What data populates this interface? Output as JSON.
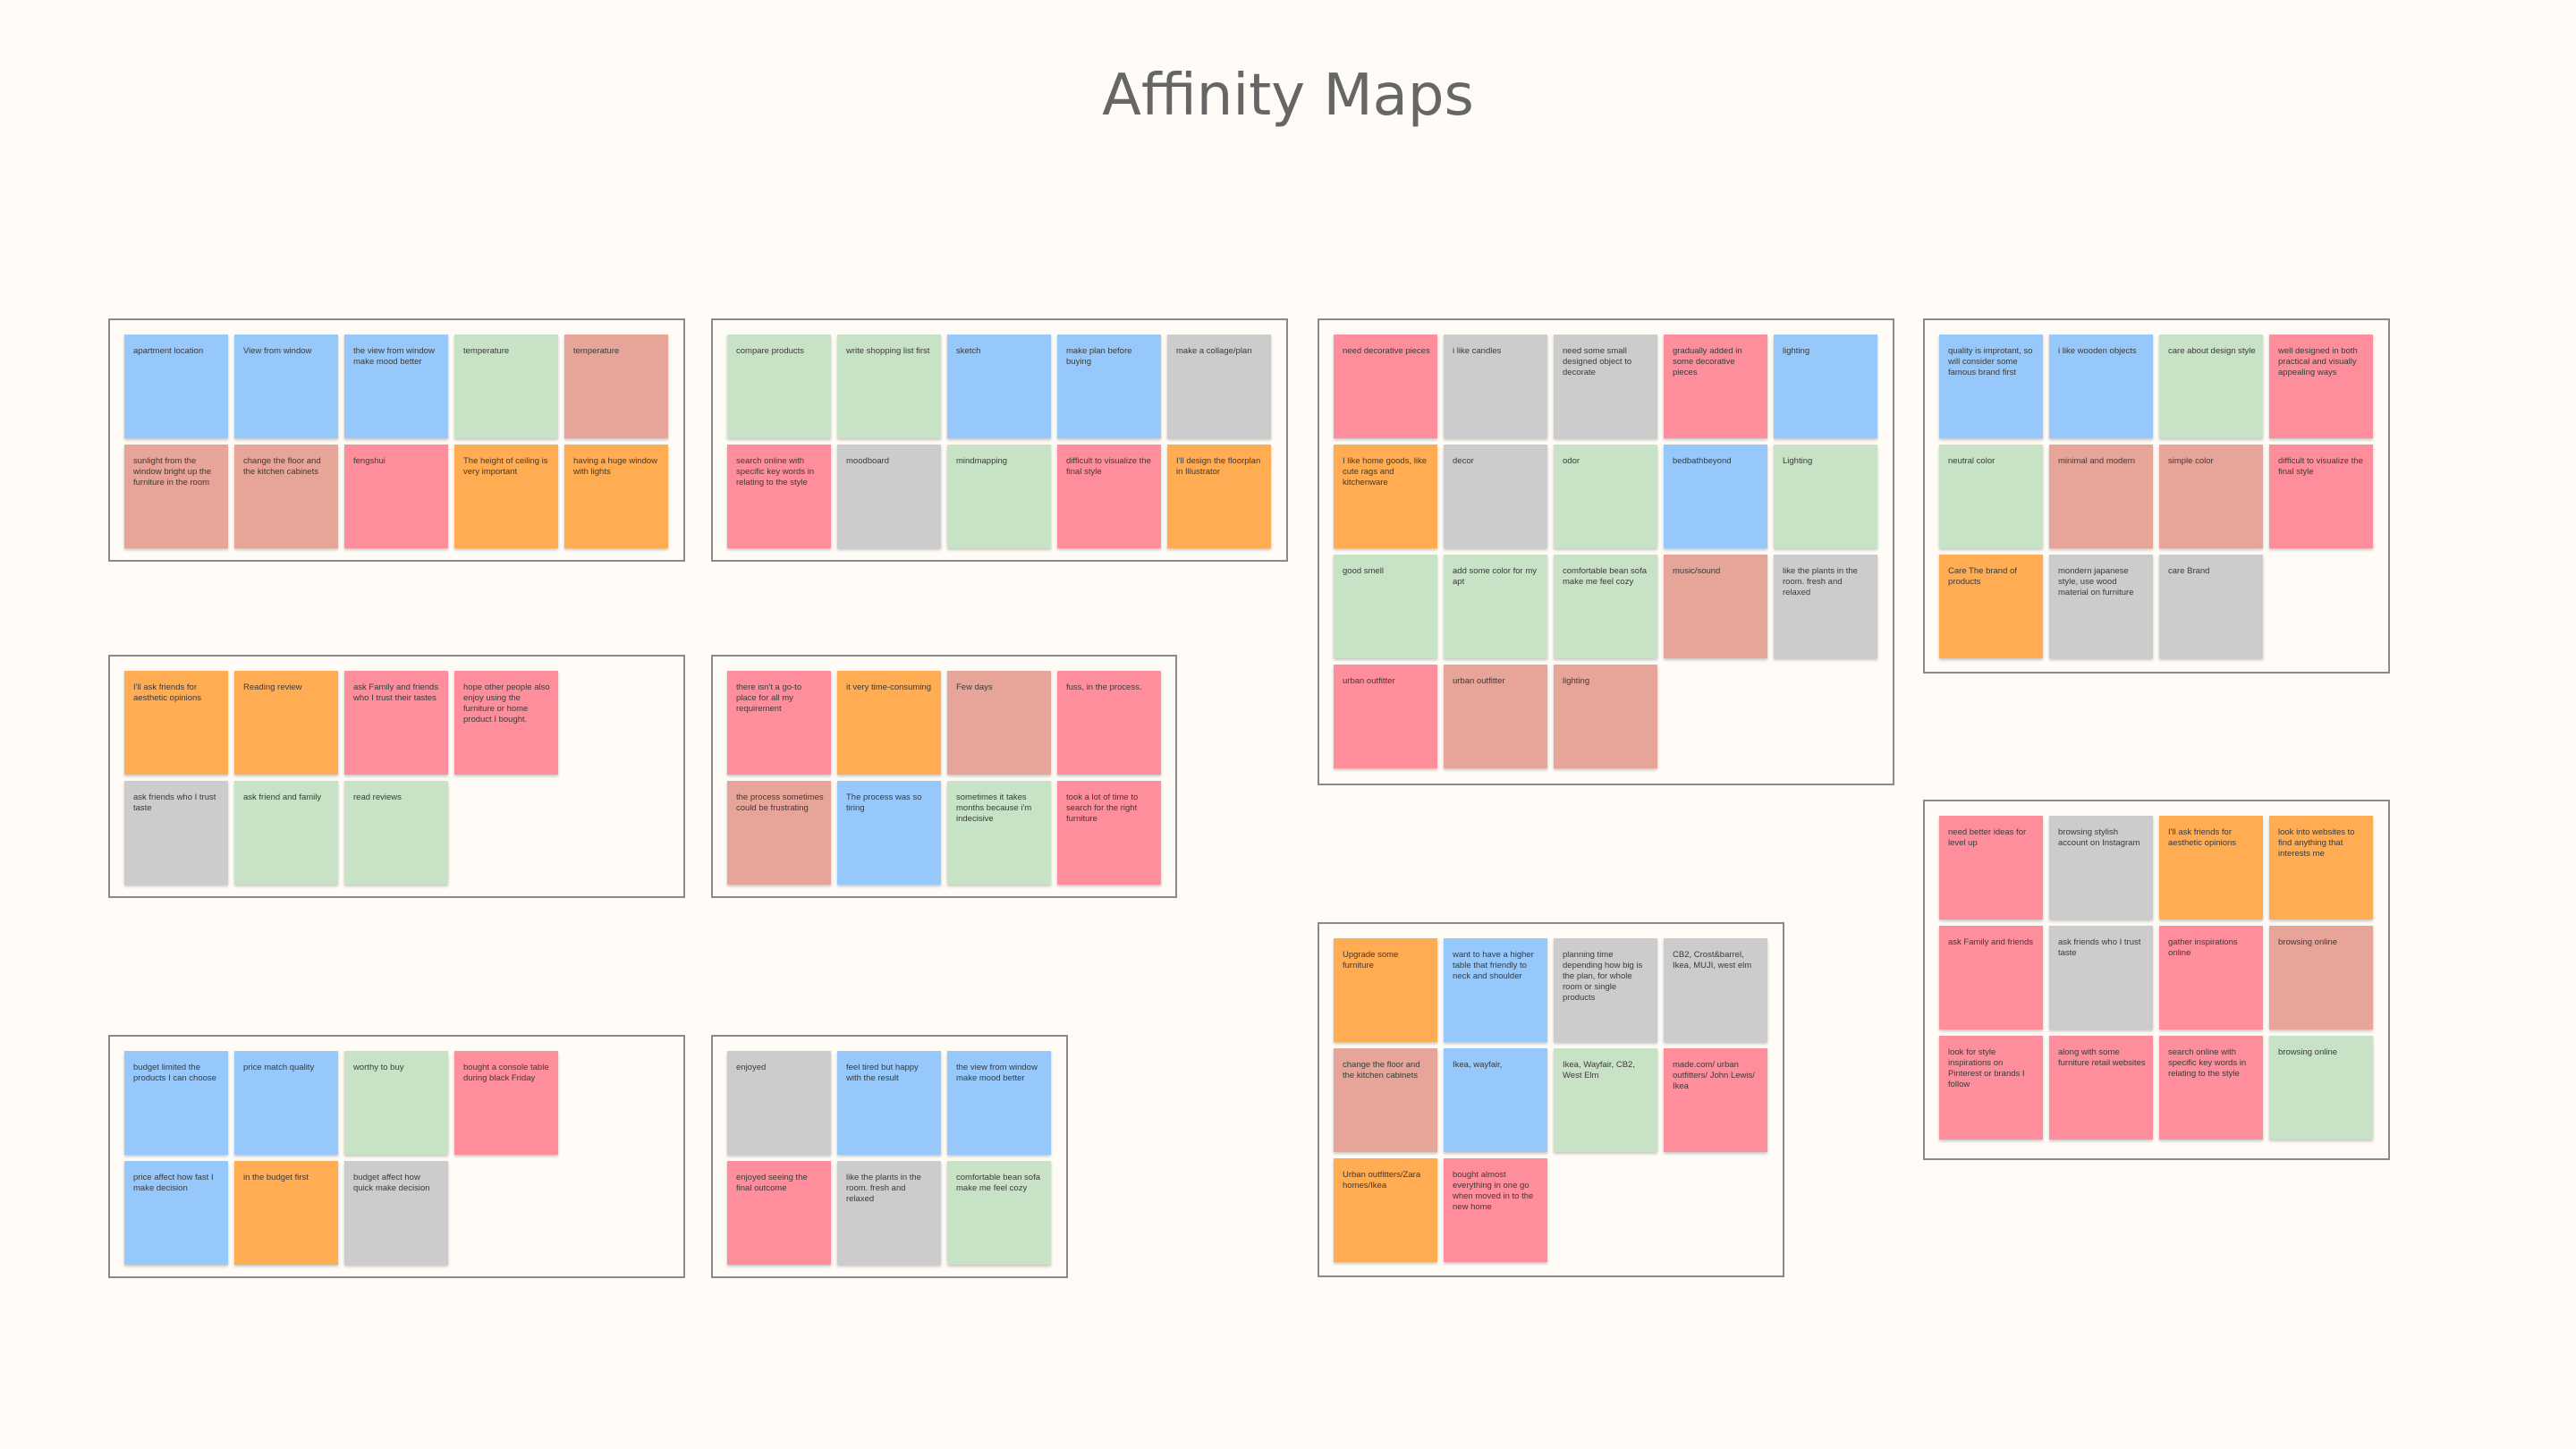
{
  "title": "Affinity Maps",
  "colors": {
    "blue": "#96c8fb",
    "green": "#c8e2c5",
    "pink": "#ff8e9c",
    "orange": "#ffac52",
    "gray": "#cccccc",
    "salmon": "#e6a598"
  },
  "groups": [
    {
      "name": "group-environment",
      "notes": [
        {
          "text": "apartment location",
          "color": "blue"
        },
        {
          "text": "View from window",
          "color": "blue"
        },
        {
          "text": "the view from window make mood better",
          "color": "blue"
        },
        {
          "text": "temperature",
          "color": "green"
        },
        {
          "text": "temperature",
          "color": "salmon"
        },
        {
          "text": "sunlight from the window bright up the furniture in the room",
          "color": "salmon"
        },
        {
          "text": "change the floor and the kitchen cabinets",
          "color": "salmon"
        },
        {
          "text": "fengshui",
          "color": "pink"
        },
        {
          "text": "The height of ceiling is very important",
          "color": "orange"
        },
        {
          "text": "having a huge window with lights",
          "color": "orange"
        }
      ]
    },
    {
      "name": "group-planning",
      "notes": [
        {
          "text": "compare products",
          "color": "green"
        },
        {
          "text": "write shopping list first",
          "color": "green"
        },
        {
          "text": "sketch",
          "color": "blue"
        },
        {
          "text": "make plan before buying",
          "color": "blue"
        },
        {
          "text": "make a collage/plan",
          "color": "gray"
        },
        {
          "text": "search online with specific key words in relating to the style",
          "color": "pink"
        },
        {
          "text": "moodboard",
          "color": "gray"
        },
        {
          "text": "mindmapping",
          "color": "green"
        },
        {
          "text": "difficult to visualize the final style",
          "color": "pink"
        },
        {
          "text": "I'll design the floorplan in Illustrator",
          "color": "orange"
        }
      ]
    },
    {
      "name": "group-decor",
      "notes": [
        {
          "text": "need decorative pieces",
          "color": "pink"
        },
        {
          "text": "i like candles",
          "color": "gray"
        },
        {
          "text": "need some small designed object to decorate",
          "color": "gray"
        },
        {
          "text": "gradually added in some decorative pieces",
          "color": "pink"
        },
        {
          "text": "lighting",
          "color": "blue"
        },
        {
          "text": "I like home goods, like cute rags and kitchenware",
          "color": "orange"
        },
        {
          "text": "decor",
          "color": "gray"
        },
        {
          "text": "odor",
          "color": "green"
        },
        {
          "text": "bedbathbeyond",
          "color": "blue"
        },
        {
          "text": "Lighting",
          "color": "green"
        },
        {
          "text": "good smell",
          "color": "green"
        },
        {
          "text": "add some color for my apt",
          "color": "green"
        },
        {
          "text": "comfortable bean sofa make me feel cozy",
          "color": "green"
        },
        {
          "text": "music/sound",
          "color": "salmon"
        },
        {
          "text": "like the plants in the room. fresh and relaxed",
          "color": "gray"
        },
        {
          "text": "urban outfitter",
          "color": "pink"
        },
        {
          "text": "urban outfitter",
          "color": "salmon"
        },
        {
          "text": "lighting",
          "color": "salmon"
        }
      ]
    },
    {
      "name": "group-style",
      "notes": [
        {
          "text": "quality is improtant, so will consider some famous brand first",
          "color": "blue"
        },
        {
          "text": "i like wooden objects",
          "color": "blue"
        },
        {
          "text": "care about design style",
          "color": "green"
        },
        {
          "text": "well designed in both practical and visually appealing ways",
          "color": "pink"
        },
        {
          "text": "neutral color",
          "color": "green"
        },
        {
          "text": "minimal and modern",
          "color": "salmon"
        },
        {
          "text": "simple color",
          "color": "salmon"
        },
        {
          "text": "difficult to visualize the final style",
          "color": "pink"
        },
        {
          "text": "Care The brand of products",
          "color": "orange"
        },
        {
          "text": "mondern japanese style, use wood material on furniture",
          "color": "gray"
        },
        {
          "text": "care Brand",
          "color": "gray"
        }
      ]
    },
    {
      "name": "group-friends",
      "notes": [
        {
          "text": "I'll ask friends for aesthetic opinions",
          "color": "orange"
        },
        {
          "text": "Reading review",
          "color": "orange"
        },
        {
          "text": "ask Family and friends who I trust their tastes",
          "color": "pink"
        },
        {
          "text": "hope other people also enjoy using the furniture or home product I bought.",
          "color": "pink"
        },
        {
          "text": "ask friends who I trust taste",
          "color": "gray"
        },
        {
          "text": "ask friend and family",
          "color": "green"
        },
        {
          "text": "read reviews",
          "color": "green"
        }
      ]
    },
    {
      "name": "group-pain-points",
      "notes": [
        {
          "text": "there isn't a go-to place for all my requirement",
          "color": "pink"
        },
        {
          "text": "it very time-consuming",
          "color": "orange"
        },
        {
          "text": "Few days",
          "color": "salmon"
        },
        {
          "text": "fuss, in the process.",
          "color": "pink"
        },
        {
          "text": "the process sometimes could be frustrating",
          "color": "salmon"
        },
        {
          "text": "The process was so tiring",
          "color": "blue"
        },
        {
          "text": "sometimes it takes months because i'm indecisive",
          "color": "green"
        },
        {
          "text": "took a lot of time to search for the right furniture",
          "color": "pink"
        }
      ]
    },
    {
      "name": "group-budget",
      "notes": [
        {
          "text": "budget limited the products I can choose",
          "color": "blue"
        },
        {
          "text": "price match quality",
          "color": "blue"
        },
        {
          "text": "worthy to buy",
          "color": "green"
        },
        {
          "text": "bought a console table during black Friday",
          "color": "pink"
        },
        {
          "text": "price affect how fast I make decision",
          "color": "blue"
        },
        {
          "text": "in the budget first",
          "color": "orange"
        },
        {
          "text": "budget affect how quick make decision",
          "color": "gray"
        }
      ]
    },
    {
      "name": "group-feelings",
      "notes": [
        {
          "text": "enjoyed",
          "color": "gray"
        },
        {
          "text": "feel tired but happy with the result",
          "color": "blue"
        },
        {
          "text": "the view from window make mood better",
          "color": "blue"
        },
        {
          "text": "enjoyed seeing the final outcome",
          "color": "pink"
        },
        {
          "text": "like the plants in the room. fresh and relaxed",
          "color": "gray"
        },
        {
          "text": "comfortable bean sofa make me feel cozy",
          "color": "green"
        }
      ]
    },
    {
      "name": "group-stores",
      "notes": [
        {
          "text": "Upgrade some furniture",
          "color": "orange"
        },
        {
          "text": "want to have a higher table that friendly to neck and shoulder",
          "color": "blue"
        },
        {
          "text": "planning time depending how big is the plan, for whole room or single products",
          "color": "gray"
        },
        {
          "text": "CB2, Crost&barrel, Ikea, MUJI, west elm",
          "color": "gray"
        },
        {
          "text": "change the floor and the kitchen cabinets",
          "color": "salmon"
        },
        {
          "text": "Ikea, wayfair,",
          "color": "blue"
        },
        {
          "text": "Ikea, Wayfair, CB2, West Elm",
          "color": "green"
        },
        {
          "text": "made.com/ urban outfitters/ John Lewis/ Ikea",
          "color": "pink"
        },
        {
          "text": "Urban outfitters/Zara homes/Ikea",
          "color": "orange"
        },
        {
          "text": "bought almost everything in one go when moved in to the new home",
          "color": "pink"
        }
      ]
    },
    {
      "name": "group-online-research",
      "notes": [
        {
          "text": "need better ideas for level up",
          "color": "pink"
        },
        {
          "text": "browsing stylish account on Instagram",
          "color": "gray"
        },
        {
          "text": "I'll ask friends for aesthetic opinions",
          "color": "orange"
        },
        {
          "text": "look into websites to find anything that interests me",
          "color": "orange"
        },
        {
          "text": "ask Family and friends",
          "color": "pink"
        },
        {
          "text": "ask friends who I trust taste",
          "color": "gray"
        },
        {
          "text": "gather inspirations online",
          "color": "pink"
        },
        {
          "text": "browsing online",
          "color": "salmon"
        },
        {
          "text": "look for style inspirations on Pinterest or brands I follow",
          "color": "pink"
        },
        {
          "text": "along with some furniture retail websites",
          "color": "pink"
        },
        {
          "text": "search online with specific key words in relating to the style",
          "color": "pink"
        },
        {
          "text": "browsing online",
          "color": "green"
        }
      ]
    }
  ]
}
